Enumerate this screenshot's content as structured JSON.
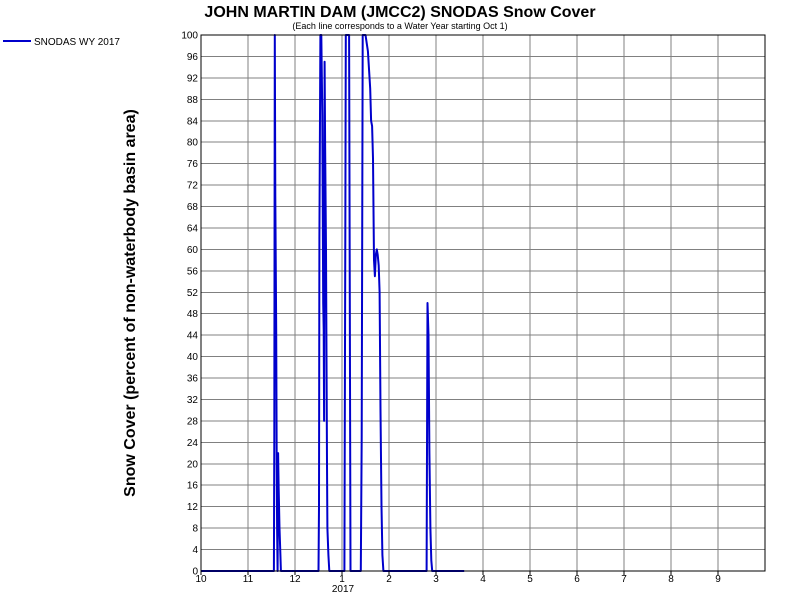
{
  "chart_data": {
    "type": "line",
    "title": "JOHN MARTIN DAM (JMCC2) SNODAS Snow Cover",
    "subtitle": "(Each line corresponds to a Water Year starting Oct 1)",
    "ylabel": "Snow Cover (percent of non-waterbody basin area)",
    "xlabel": "",
    "year_label": "2017",
    "ylim": [
      0,
      100
    ],
    "xlim": [
      0,
      12
    ],
    "x_tick_labels": [
      "10",
      "11",
      "12",
      "1",
      "2",
      "3",
      "4",
      "5",
      "6",
      "7",
      "8",
      "9"
    ],
    "y_tick_labels": [
      "0",
      "4",
      "8",
      "12",
      "16",
      "20",
      "24",
      "28",
      "32",
      "36",
      "40",
      "44",
      "48",
      "52",
      "56",
      "60",
      "64",
      "68",
      "72",
      "76",
      "80",
      "84",
      "88",
      "92",
      "96",
      "100"
    ],
    "grid": true,
    "legend": "top-left",
    "series": [
      {
        "name": "SNODAS WY 2017",
        "color": "#0000cc",
        "x": [
          0,
          1.55,
          1.56,
          1.57,
          1.58,
          1.6,
          1.61,
          1.62,
          1.63,
          1.64,
          1.65,
          1.67,
          1.69,
          1.7,
          1.72,
          1.73,
          1.74,
          1.75,
          1.77,
          2.5,
          2.51,
          2.52,
          2.54,
          2.56,
          2.58,
          2.6,
          2.61,
          2.62,
          2.63,
          2.64,
          2.66,
          2.68,
          2.69,
          2.71,
          2.73,
          2.75,
          2.78,
          2.8,
          3.05,
          3.07,
          3.08,
          3.1,
          3.12,
          3.15,
          3.18,
          3.2,
          3.21,
          3.23,
          3.25,
          3.4,
          3.42,
          3.44,
          3.45,
          3.46,
          3.48,
          3.5,
          3.55,
          3.6,
          3.62,
          3.64,
          3.66,
          3.68,
          3.7,
          3.72,
          3.74,
          3.76,
          3.78,
          3.8,
          3.82,
          3.84,
          3.86,
          3.88,
          3.9,
          3.92,
          3.95,
          4.8,
          4.82,
          4.84,
          4.86,
          4.88,
          4.9,
          4.92,
          4.95,
          5.6
        ],
        "y": [
          0,
          0,
          25,
          100,
          70,
          45,
          20,
          8,
          0,
          22,
          16,
          8,
          3,
          0,
          0,
          0,
          0,
          0,
          0,
          0,
          12,
          62,
          100,
          100,
          85,
          50,
          45,
          28,
          95,
          80,
          60,
          20,
          8,
          3,
          0,
          0,
          0,
          0,
          0,
          62,
          100,
          100,
          100,
          100,
          0,
          0,
          0,
          0,
          0,
          0,
          25,
          100,
          100,
          100,
          100,
          100,
          97,
          90,
          84,
          83,
          77,
          58,
          55,
          59,
          60,
          59,
          57,
          52,
          30,
          12,
          3,
          0,
          0,
          0,
          0,
          0,
          50,
          44,
          22,
          8,
          2,
          0,
          0,
          0
        ]
      }
    ]
  }
}
